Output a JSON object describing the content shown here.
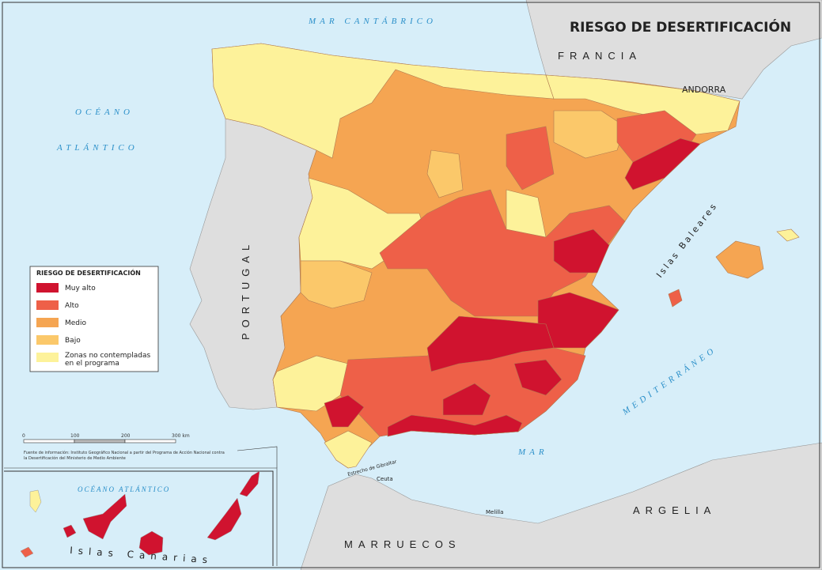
{
  "map": {
    "title": "RIESGO DE DESERTIFICACIÓN",
    "labels": {
      "mar_cantabrico": "MAR CANTÁBRICO",
      "oceano": "OCÉANO",
      "atlantico": "ATLÁNTICO",
      "francia": "FRANCIA",
      "andorra": "ANDORRA",
      "portugal": "PORTUGAL",
      "baleares": "Islas Baleares",
      "mar": "MAR",
      "mediterraneo": "MEDITERRÁNEO",
      "argelia": "ARGELIA",
      "marruecos": "MARRUECOS",
      "ceuta": "Ceuta",
      "melilla": "Melilla",
      "estrecho": "Estrecho de Gibraltar"
    },
    "legend": {
      "title": "RIESGO DE DESERTIFICACIÓN",
      "items": [
        "Muy alto",
        "Alto",
        "Medio",
        "Bajo",
        "Zonas no contempladas",
        "en el programa"
      ]
    },
    "scale_bar": [
      "0",
      "100",
      "200",
      "300 km"
    ],
    "source": [
      "Fuente de información: Instituto Geográfico Nacional a partir del Programa de Acción Nacional contra",
      "la Desertificación del Ministerio de Medio Ambiente"
    ],
    "inset": {
      "ocean": "OCÉANO ATLÁNTICO",
      "islands": "Islas Canarias"
    }
  }
}
